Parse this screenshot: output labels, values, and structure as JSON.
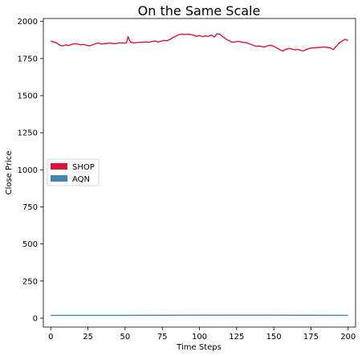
{
  "chart_data": {
    "type": "line",
    "title": "On the Same Scale",
    "xlabel": "Time Steps",
    "ylabel": "Close Price",
    "xlim": [
      -5,
      205
    ],
    "ylim": [
      -60,
      2020
    ],
    "xticks": [
      0,
      25,
      50,
      75,
      100,
      125,
      150,
      175,
      200
    ],
    "yticks": [
      0,
      250,
      500,
      750,
      1000,
      1250,
      1500,
      1750,
      2000
    ],
    "grid": false,
    "legend": "center-left",
    "series": [
      {
        "name": "SHOP",
        "color": "#dc143c",
        "x": [
          0,
          2,
          4,
          6,
          8,
          10,
          12,
          14,
          16,
          18,
          20,
          22,
          24,
          26,
          28,
          30,
          32,
          34,
          36,
          38,
          40,
          42,
          44,
          46,
          48,
          50,
          51,
          52,
          53,
          54,
          56,
          58,
          60,
          62,
          64,
          66,
          68,
          70,
          72,
          74,
          76,
          78,
          80,
          82,
          84,
          86,
          88,
          90,
          92,
          94,
          96,
          98,
          100,
          102,
          104,
          106,
          108,
          110,
          112,
          114,
          116,
          118,
          120,
          122,
          124,
          126,
          128,
          130,
          132,
          134,
          136,
          138,
          140,
          142,
          144,
          146,
          148,
          150,
          152,
          154,
          156,
          158,
          160,
          162,
          164,
          166,
          168,
          170,
          172,
          174,
          176,
          178,
          180,
          182,
          184,
          186,
          188,
          190,
          192,
          194,
          196,
          198,
          200
        ],
        "values": [
          1868,
          1862,
          1855,
          1840,
          1835,
          1842,
          1838,
          1845,
          1850,
          1848,
          1842,
          1845,
          1840,
          1835,
          1842,
          1850,
          1855,
          1848,
          1850,
          1852,
          1855,
          1850,
          1852,
          1855,
          1856,
          1854,
          1858,
          1898,
          1872,
          1860,
          1855,
          1858,
          1860,
          1860,
          1862,
          1860,
          1865,
          1868,
          1862,
          1866,
          1872,
          1870,
          1878,
          1890,
          1900,
          1910,
          1915,
          1912,
          1915,
          1912,
          1908,
          1900,
          1905,
          1898,
          1902,
          1900,
          1908,
          1895,
          1918,
          1912,
          1895,
          1880,
          1870,
          1860,
          1862,
          1866,
          1862,
          1858,
          1855,
          1848,
          1840,
          1832,
          1835,
          1830,
          1828,
          1836,
          1840,
          1832,
          1822,
          1810,
          1800,
          1812,
          1818,
          1815,
          1808,
          1812,
          1805,
          1802,
          1812,
          1818,
          1822,
          1822,
          1825,
          1826,
          1828,
          1825,
          1822,
          1810,
          1832,
          1855,
          1868,
          1880,
          1872
        ]
      },
      {
        "name": "AQN",
        "color": "#4682b4",
        "x": [
          0,
          50,
          100,
          150,
          200
        ],
        "values": [
          19,
          19,
          20,
          20,
          19
        ]
      }
    ]
  }
}
